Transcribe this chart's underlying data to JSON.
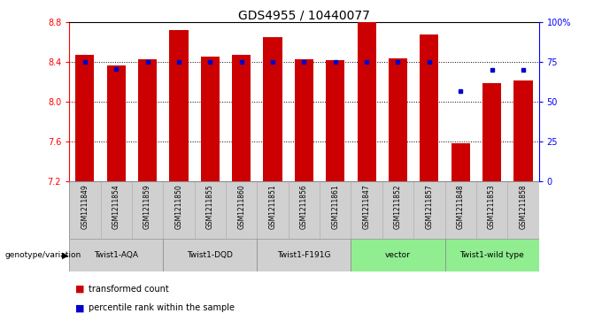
{
  "title": "GDS4955 / 10440077",
  "samples": [
    "GSM1211849",
    "GSM1211854",
    "GSM1211859",
    "GSM1211850",
    "GSM1211855",
    "GSM1211860",
    "GSM1211851",
    "GSM1211856",
    "GSM1211861",
    "GSM1211847",
    "GSM1211852",
    "GSM1211857",
    "GSM1211848",
    "GSM1211853",
    "GSM1211858"
  ],
  "transformed_count": [
    8.47,
    8.37,
    8.43,
    8.72,
    8.46,
    8.47,
    8.65,
    8.43,
    8.42,
    8.8,
    8.44,
    8.68,
    7.58,
    8.19,
    8.22
  ],
  "percentile_rank": [
    75,
    71,
    75,
    75,
    75,
    75,
    75,
    75,
    75,
    75,
    75,
    75,
    57,
    70,
    70
  ],
  "ylim_left": [
    7.2,
    8.8
  ],
  "ylim_right": [
    0,
    100
  ],
  "yticks_left": [
    7.2,
    7.6,
    8.0,
    8.4,
    8.8
  ],
  "yticks_right": [
    0,
    25,
    50,
    75,
    100
  ],
  "ytick_labels_right": [
    "0",
    "25",
    "50",
    "75",
    "100%"
  ],
  "groups": [
    {
      "label": "Twist1-AQA",
      "indices": [
        0,
        1,
        2
      ],
      "color": "#d0d0d0"
    },
    {
      "label": "Twist1-DQD",
      "indices": [
        3,
        4,
        5
      ],
      "color": "#d0d0d0"
    },
    {
      "label": "Twist1-F191G",
      "indices": [
        6,
        7,
        8
      ],
      "color": "#d0d0d0"
    },
    {
      "label": "vector",
      "indices": [
        9,
        10,
        11
      ],
      "color": "#90ee90"
    },
    {
      "label": "Twist1-wild type",
      "indices": [
        12,
        13,
        14
      ],
      "color": "#90ee90"
    }
  ],
  "bar_color": "#cc0000",
  "dot_color": "#0000cc",
  "sample_bg_color": "#d0d0d0",
  "grid_color": "#000000",
  "title_fontsize": 10,
  "tick_fontsize": 7,
  "label_fontsize": 7.5,
  "gridlines_at": [
    7.6,
    8.0,
    8.4
  ]
}
